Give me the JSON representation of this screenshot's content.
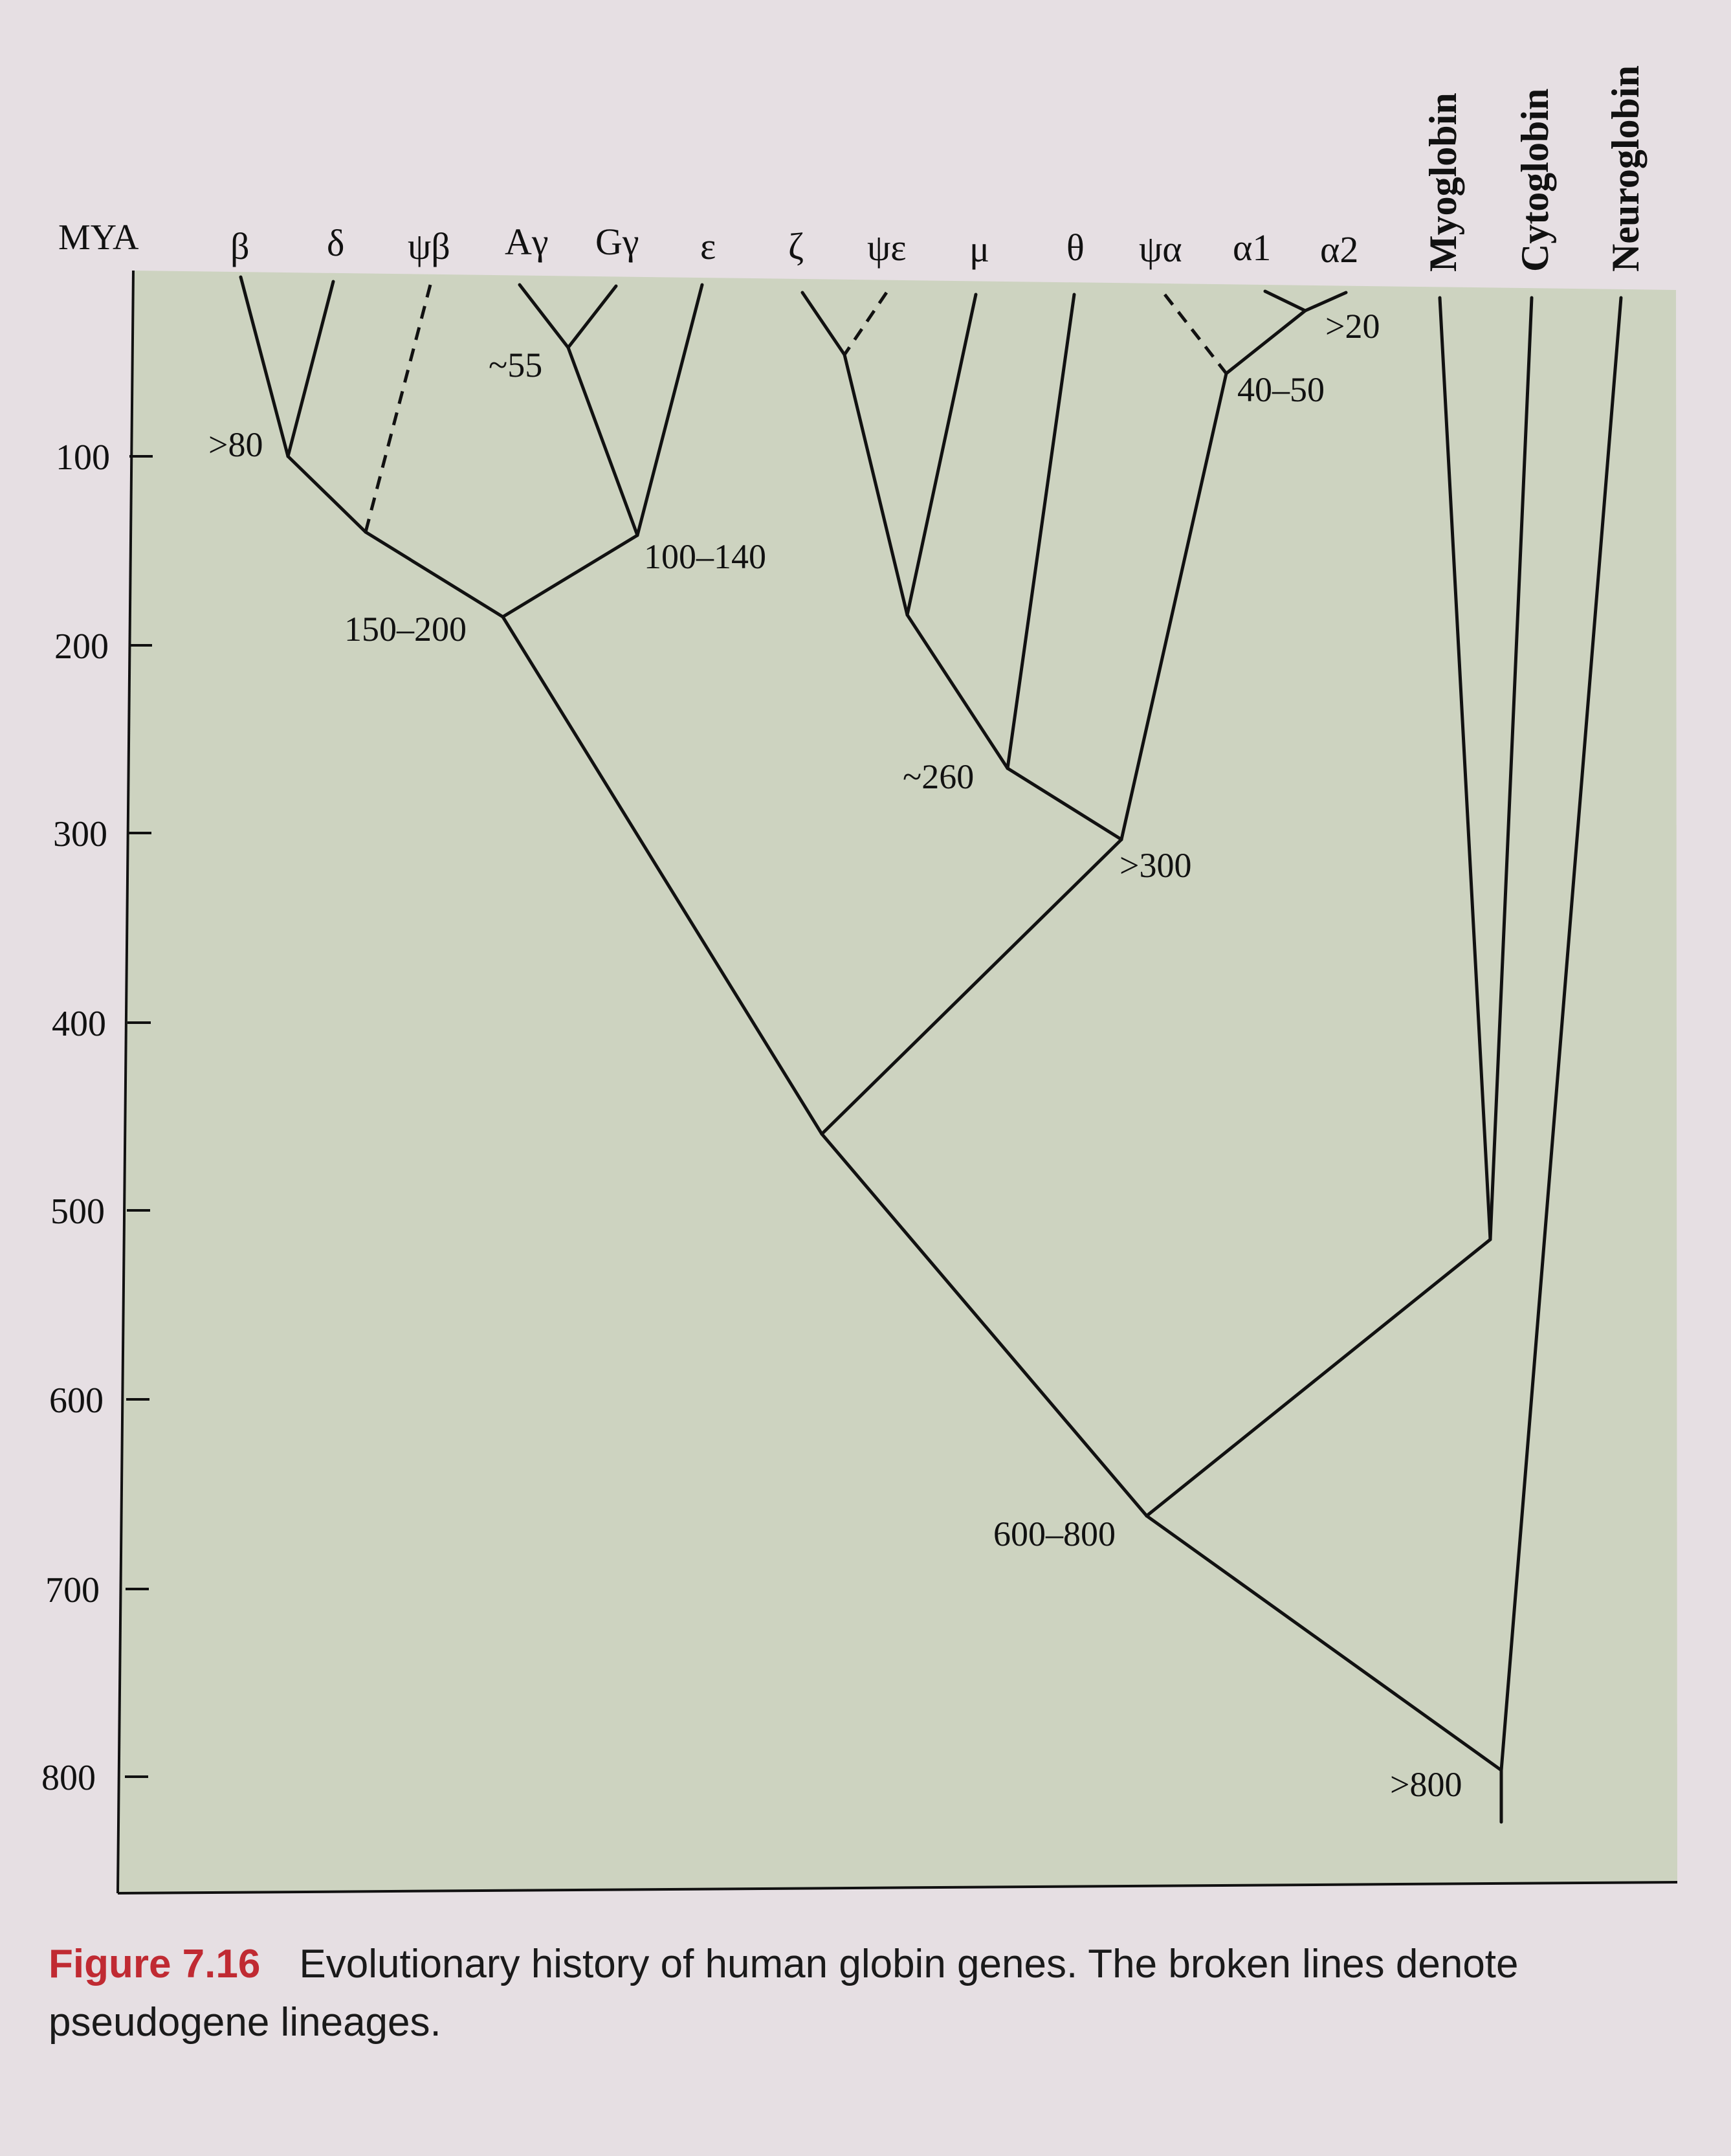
{
  "axis": {
    "title": "MYA",
    "ticks": [
      "100",
      "200",
      "300",
      "400",
      "500",
      "600",
      "700",
      "800"
    ]
  },
  "genes": [
    "β",
    "δ",
    "ψβ",
    "Aγ",
    "Gγ",
    "ε",
    "ζ",
    "ψε",
    "μ",
    "θ",
    "ψα",
    "α1",
    "α2",
    "Myoglobin",
    "Cytoglobin",
    "Neuroglobin"
  ],
  "node_labels": [
    ">80",
    "~55",
    "150–200",
    "100–140",
    "~260",
    ">300",
    ">20",
    "40–50",
    "600–800",
    ">800"
  ],
  "caption": {
    "number": "Figure 7.16",
    "text": "Evolutionary history of human globin genes. The broken lines denote pseudogene lineages."
  },
  "styles": {
    "panel_color": "#cdd3c0",
    "page_color": "#e6dfe3",
    "caption_accent": "#c02a32"
  }
}
